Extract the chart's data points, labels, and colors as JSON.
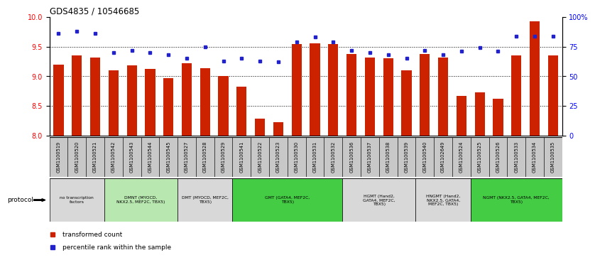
{
  "title": "GDS4835 / 10546685",
  "samples": [
    "GSM1100519",
    "GSM1100520",
    "GSM1100521",
    "GSM1100542",
    "GSM1100543",
    "GSM1100544",
    "GSM1100545",
    "GSM1100527",
    "GSM1100528",
    "GSM1100529",
    "GSM1100541",
    "GSM1100522",
    "GSM1100523",
    "GSM1100530",
    "GSM1100531",
    "GSM1100532",
    "GSM1100536",
    "GSM1100537",
    "GSM1100538",
    "GSM1100539",
    "GSM1100540",
    "GSM1102649",
    "GSM1100524",
    "GSM1100525",
    "GSM1100526",
    "GSM1100533",
    "GSM1100534",
    "GSM1100535"
  ],
  "bar_values": [
    9.2,
    9.35,
    9.32,
    9.1,
    9.18,
    9.12,
    8.97,
    9.22,
    9.13,
    9.0,
    8.83,
    8.28,
    8.23,
    9.54,
    9.55,
    9.54,
    9.38,
    9.32,
    9.3,
    9.1,
    9.38,
    9.31,
    8.67,
    8.73,
    8.62,
    9.35,
    9.93,
    9.35
  ],
  "dot_values": [
    86,
    88,
    86,
    70,
    72,
    70,
    68,
    65,
    75,
    63,
    65,
    63,
    62,
    79,
    83,
    79,
    72,
    70,
    68,
    65,
    72,
    68,
    71,
    74,
    71,
    84,
    84,
    84
  ],
  "bar_color": "#cc2200",
  "dot_color": "#2222cc",
  "ylim_left": [
    8.0,
    10.0
  ],
  "ylim_right": [
    0,
    100
  ],
  "yticks_left": [
    8.0,
    8.5,
    9.0,
    9.5,
    10.0
  ],
  "yticks_right": [
    0,
    25,
    50,
    75,
    100
  ],
  "yticklabels_right": [
    "0",
    "25",
    "50",
    "75",
    "100%"
  ],
  "hlines": [
    8.5,
    9.0,
    9.5
  ],
  "protocol_groups": [
    {
      "label": "no transcription\nfactors",
      "start": 0,
      "end": 3,
      "color": "#d8d8d8"
    },
    {
      "label": "DMNT (MYOCD,\nNKX2.5, MEF2C, TBX5)",
      "start": 3,
      "end": 7,
      "color": "#b8e8b0"
    },
    {
      "label": "DMT (MYOCD, MEF2C,\nTBX5)",
      "start": 7,
      "end": 10,
      "color": "#d8d8d8"
    },
    {
      "label": "GMT (GATA4, MEF2C,\nTBX5)",
      "start": 10,
      "end": 16,
      "color": "#44cc44"
    },
    {
      "label": "HGMT (Hand2,\nGATA4, MEF2C,\nTBX5)",
      "start": 16,
      "end": 20,
      "color": "#d8d8d8"
    },
    {
      "label": "HNGMT (Hand2,\nNKX2.5, GATA4,\nMEF2C, TBX5)",
      "start": 20,
      "end": 23,
      "color": "#d8d8d8"
    },
    {
      "label": "NGMT (NKX2.5, GATA4, MEF2C,\nTBX5)",
      "start": 23,
      "end": 28,
      "color": "#44cc44"
    }
  ],
  "protocol_label": "protocol",
  "legend_bar_label": "transformed count",
  "legend_dot_label": "percentile rank within the sample",
  "sample_box_color": "#c8c8c8",
  "bar_width": 0.55
}
